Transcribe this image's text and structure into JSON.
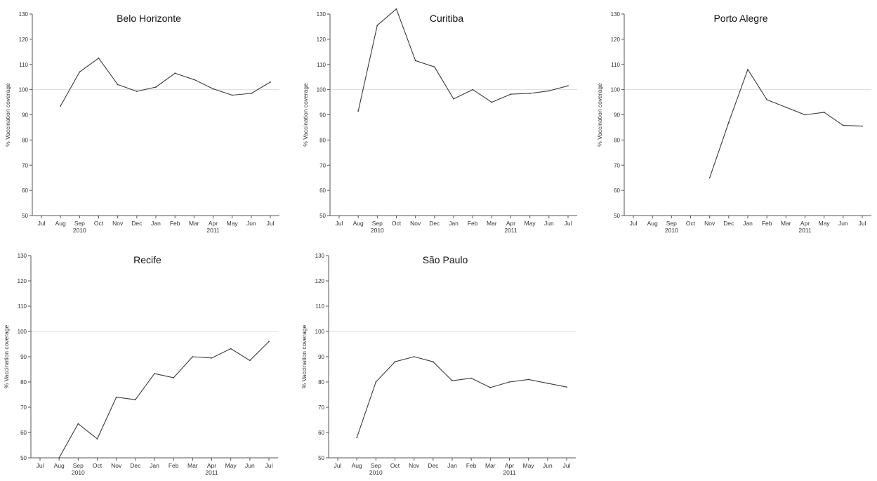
{
  "chart_data": [
    {
      "type": "line",
      "title": "Belo Horizonte",
      "ylabel": "% Vaccination coverage",
      "ylim": [
        50,
        130
      ],
      "yticks": [
        50,
        60,
        70,
        80,
        90,
        100,
        110,
        120,
        130
      ],
      "reference_line": 100,
      "categories": [
        "Jul",
        "Aug",
        "Sep",
        "Oct",
        "Nov",
        "Dec",
        "Jan",
        "Feb",
        "Mar",
        "Apr",
        "May",
        "Jun",
        "Jul"
      ],
      "year_labels": [
        {
          "label": "2010",
          "at": "Sep"
        },
        {
          "label": "2011",
          "at": "Apr"
        }
      ],
      "series": [
        {
          "values": [
            null,
            93.5,
            107,
            112.5,
            102,
            99.3,
            101,
            106.5,
            104,
            100.3,
            97.8,
            98.5,
            103
          ]
        }
      ]
    },
    {
      "type": "line",
      "title": "Curitiba",
      "ylabel": "% Vaccination coverage",
      "ylim": [
        50,
        130
      ],
      "yticks": [
        50,
        60,
        70,
        80,
        90,
        100,
        110,
        120,
        130
      ],
      "reference_line": 100,
      "categories": [
        "Jul",
        "Aug",
        "Sep",
        "Oct",
        "Nov",
        "Dec",
        "Jan",
        "Feb",
        "Mar",
        "Apr",
        "May",
        "Jun",
        "Jul"
      ],
      "year_labels": [
        {
          "label": "2010",
          "at": "Sep"
        },
        {
          "label": "2011",
          "at": "Apr"
        }
      ],
      "series": [
        {
          "values": [
            null,
            91.5,
            125.5,
            132,
            111.5,
            109,
            96.3,
            100,
            95,
            98.2,
            98.5,
            99.5,
            101.5
          ]
        }
      ]
    },
    {
      "type": "line",
      "title": "Porto Alegre",
      "ylabel": "% Vaccination coverage",
      "ylim": [
        50,
        130
      ],
      "yticks": [
        50,
        60,
        70,
        80,
        90,
        100,
        110,
        120,
        130
      ],
      "reference_line": 100,
      "categories": [
        "Jul",
        "Aug",
        "Sep",
        "Oct",
        "Nov",
        "Dec",
        "Jan",
        "Feb",
        "Mar",
        "Apr",
        "May",
        "Jun",
        "Jul"
      ],
      "year_labels": [
        {
          "label": "2010",
          "at": "Sep"
        },
        {
          "label": "2011",
          "at": "Apr"
        }
      ],
      "series": [
        {
          "values": [
            null,
            null,
            null,
            null,
            65,
            87,
            108,
            96,
            93,
            90,
            91,
            85.8,
            85.5
          ]
        }
      ]
    },
    {
      "type": "line",
      "title": "Recife",
      "ylabel": "% Vaccination coverage",
      "ylim": [
        50,
        130
      ],
      "yticks": [
        50,
        60,
        70,
        80,
        90,
        100,
        110,
        120,
        130
      ],
      "reference_line": 100,
      "categories": [
        "Jul",
        "Aug",
        "Sep",
        "Oct",
        "Nov",
        "Dec",
        "Jan",
        "Feb",
        "Mar",
        "Apr",
        "May",
        "Jun",
        "Jul"
      ],
      "year_labels": [
        {
          "label": "2010",
          "at": "Sep"
        },
        {
          "label": "2011",
          "at": "Apr"
        }
      ],
      "series": [
        {
          "values": [
            null,
            50,
            63.5,
            57.5,
            74,
            73,
            83.3,
            81.7,
            90,
            89.5,
            93.2,
            88.5,
            96
          ]
        }
      ]
    },
    {
      "type": "line",
      "title": "São Paulo",
      "ylabel": "% Vaccination coverage",
      "ylim": [
        50,
        130
      ],
      "yticks": [
        50,
        60,
        70,
        80,
        90,
        100,
        110,
        120,
        130
      ],
      "reference_line": 100,
      "categories": [
        "Jul",
        "Aug",
        "Sep",
        "Oct",
        "Nov",
        "Dec",
        "Jan",
        "Feb",
        "Mar",
        "Apr",
        "May",
        "Jun",
        "Jul"
      ],
      "year_labels": [
        {
          "label": "2010",
          "at": "Sep"
        },
        {
          "label": "2011",
          "at": "Apr"
        }
      ],
      "series": [
        {
          "values": [
            null,
            58,
            80,
            88,
            90,
            88,
            80.5,
            81.5,
            77.8,
            80,
            81,
            79.5,
            78
          ]
        }
      ]
    }
  ],
  "colors": {
    "line": "#3a3a3a",
    "axis": "#555555",
    "reference_line": "#dddddd",
    "text": "#333333"
  }
}
